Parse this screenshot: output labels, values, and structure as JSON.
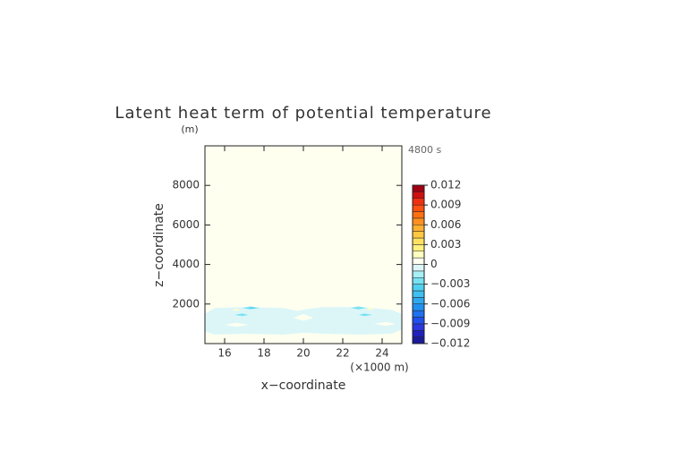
{
  "chart_data": {
    "type": "contour",
    "title": "Latent heat term of potential temperature",
    "y_unit": "(m)",
    "time_label": "4800 s",
    "x_label": "x−coordinate",
    "x_unit": "(×1000 m)",
    "y_label": "z−coordinate",
    "xlim": [
      15,
      25
    ],
    "ylim": [
      0,
      10000
    ],
    "xticks": [
      16,
      18,
      20,
      22,
      24
    ],
    "yticks": [
      2000,
      4000,
      6000,
      8000
    ],
    "background_value": 0.0005,
    "levels": [
      -0.012,
      -0.011,
      -0.01,
      -0.009,
      -0.008,
      -0.007,
      -0.006,
      -0.005,
      -0.004,
      -0.003,
      -0.002,
      -0.001,
      0,
      0.001,
      0.002,
      0.003,
      0.004,
      0.005,
      0.006,
      0.007,
      0.008,
      0.009,
      0.01,
      0.011,
      0.012
    ],
    "colors": [
      "#1a1a9a",
      "#2020bc",
      "#2a38dc",
      "#2050ee",
      "#2070f0",
      "#2090f0",
      "#30a8f0",
      "#40c0f0",
      "#50d0f0",
      "#78e2f2",
      "#a8eef5",
      "#dcf6f8",
      "#fffff0",
      "#ffffc0",
      "#fff080",
      "#ffe060",
      "#ffc840",
      "#ffb030",
      "#ff9020",
      "#ff7010",
      "#ff5010",
      "#f03010",
      "#d01010",
      "#a00010"
    ],
    "colorbar_ticks": [
      {
        "value": -0.012,
        "label": "−0.012"
      },
      {
        "value": -0.009,
        "label": "−0.009"
      },
      {
        "value": -0.006,
        "label": "−0.006"
      },
      {
        "value": -0.003,
        "label": "−0.003"
      },
      0,
      0.003,
      0.006,
      0.009,
      0.012
    ],
    "regions": [
      {
        "value": -0.0005,
        "x": [
          15,
          15.5,
          17,
          19,
          19.7,
          20.2,
          21,
          23,
          24.5,
          25,
          25,
          24.5,
          23,
          21,
          20,
          19,
          17,
          15.5,
          15
        ],
        "z": [
          1500,
          1800,
          1850,
          1800,
          1650,
          1750,
          1850,
          1850,
          1700,
          1500,
          700,
          500,
          450,
          500,
          550,
          450,
          500,
          450,
          600
        ]
      },
      {
        "value": 0.0005,
        "x": [
          19.5,
          20,
          20.5,
          20
        ],
        "z": [
          1300,
          1500,
          1300,
          1150
        ]
      },
      {
        "value": 0.0005,
        "x": [
          16,
          16.6,
          17.2,
          16.6
        ],
        "z": [
          950,
          1050,
          950,
          850
        ]
      },
      {
        "value": 0.0005,
        "x": [
          23.6,
          24.2,
          24.7,
          24.2
        ],
        "z": [
          1000,
          1100,
          1000,
          900
        ]
      },
      {
        "value": -0.0025,
        "x": [
          16.9,
          17.3,
          17.8,
          17.3
        ],
        "z": [
          1800,
          1880,
          1800,
          1730
        ]
      },
      {
        "value": -0.0035,
        "x": [
          17.2,
          17.4,
          17.6,
          17.4
        ],
        "z": [
          1800,
          1840,
          1800,
          1770
        ]
      },
      {
        "value": -0.0025,
        "x": [
          16.5,
          16.9,
          17.2,
          16.9
        ],
        "z": [
          1450,
          1520,
          1450,
          1390
        ]
      },
      {
        "value": -0.0025,
        "x": [
          22.4,
          22.8,
          23.2,
          22.8
        ],
        "z": [
          1800,
          1880,
          1800,
          1730
        ]
      },
      {
        "value": -0.0025,
        "x": [
          22.8,
          23.1,
          23.5,
          23.1
        ],
        "z": [
          1450,
          1520,
          1450,
          1390
        ]
      },
      {
        "value": 0.0015,
        "x": [
          16.4,
          16.6,
          16.8,
          16.6
        ],
        "z": [
          1700,
          1760,
          1700,
          1650
        ]
      },
      {
        "value": 0.0015,
        "x": [
          23.2,
          23.4,
          23.6,
          23.4
        ],
        "z": [
          1750,
          1810,
          1750,
          1700
        ]
      }
    ]
  }
}
